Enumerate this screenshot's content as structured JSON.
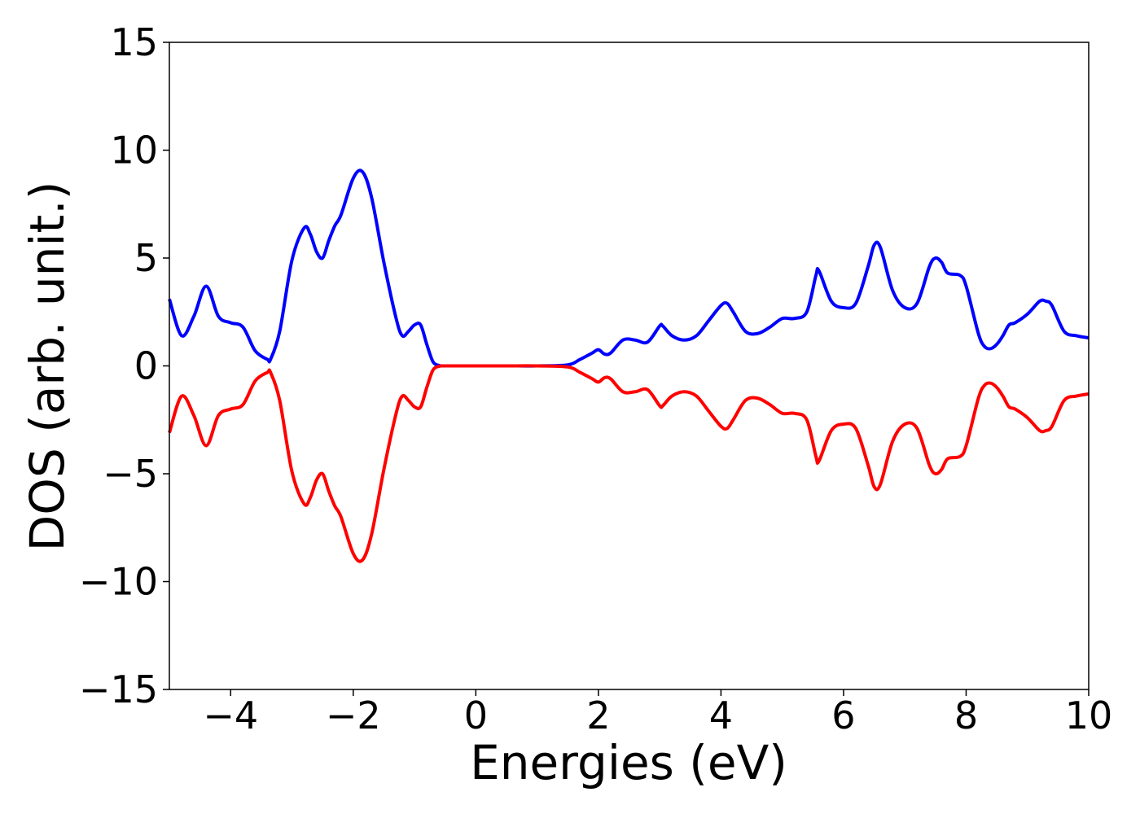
{
  "chart_data": {
    "type": "line",
    "title": "",
    "xlabel": "Energies (eV)",
    "ylabel": "DOS (arb. unit.)",
    "xlim": [
      -5,
      10
    ],
    "ylim": [
      -15,
      15
    ],
    "grid": false,
    "legend": "none",
    "x_ticks": [
      -4,
      -2,
      0,
      2,
      4,
      6,
      8,
      10
    ],
    "x_tick_labels": [
      "−4",
      "−2",
      "0",
      "2",
      "4",
      "6",
      "8",
      "10"
    ],
    "y_ticks": [
      -15,
      -10,
      -5,
      0,
      5,
      10,
      15
    ],
    "y_tick_labels": [
      "−15",
      "−10",
      "−5",
      "0",
      "5",
      "10",
      "15"
    ],
    "series": [
      {
        "color": "#0000ff",
        "x": [
          -5.0,
          -4.8,
          -4.6,
          -4.4,
          -4.2,
          -4.0,
          -3.8,
          -3.6,
          -3.4,
          -3.35,
          -3.2,
          -3.0,
          -2.8,
          -2.7,
          -2.6,
          -2.5,
          -2.4,
          -2.3,
          -2.2,
          -2.0,
          -1.85,
          -1.7,
          -1.5,
          -1.3,
          -1.2,
          -1.1,
          -1.0,
          -0.9,
          -0.8,
          -0.7,
          -0.6,
          -0.5,
          0.0,
          0.5,
          1.0,
          1.5,
          1.7,
          1.9,
          2.0,
          2.1,
          2.2,
          2.4,
          2.6,
          2.8,
          3.0,
          3.05,
          3.2,
          3.4,
          3.6,
          3.8,
          4.0,
          4.1,
          4.2,
          4.4,
          4.6,
          4.8,
          5.0,
          5.2,
          5.4,
          5.55,
          5.6,
          5.8,
          6.0,
          6.2,
          6.4,
          6.5,
          6.6,
          6.8,
          7.0,
          7.2,
          7.4,
          7.5,
          7.6,
          7.7,
          7.9,
          8.0,
          8.2,
          8.3,
          8.4,
          8.5,
          8.6,
          8.7,
          8.8,
          9.0,
          9.2,
          9.3,
          9.4,
          9.6,
          9.8,
          10.0
        ],
        "values": [
          3.1,
          1.4,
          2.3,
          3.7,
          2.3,
          2.0,
          1.8,
          0.7,
          0.3,
          0.3,
          1.6,
          4.9,
          6.4,
          6.1,
          5.3,
          5.0,
          5.8,
          6.5,
          7.0,
          8.7,
          9.0,
          7.8,
          4.8,
          2.2,
          1.4,
          1.6,
          1.9,
          1.9,
          1.0,
          0.2,
          0.02,
          0.0,
          0.0,
          0.0,
          0.0,
          0.05,
          0.3,
          0.6,
          0.75,
          0.55,
          0.6,
          1.2,
          1.2,
          1.1,
          1.85,
          1.85,
          1.4,
          1.2,
          1.4,
          2.1,
          2.8,
          2.9,
          2.5,
          1.6,
          1.5,
          1.8,
          2.2,
          2.2,
          2.5,
          4.2,
          4.4,
          3.0,
          2.7,
          2.9,
          4.6,
          5.6,
          5.5,
          3.5,
          2.7,
          2.9,
          4.6,
          5.0,
          4.8,
          4.3,
          4.2,
          3.7,
          1.5,
          0.9,
          0.8,
          1.0,
          1.4,
          1.9,
          2.0,
          2.4,
          3.0,
          3.0,
          2.8,
          1.6,
          1.4,
          1.3
        ]
      },
      {
        "color": "#ff0000",
        "x": [
          -5.0,
          -4.8,
          -4.6,
          -4.4,
          -4.2,
          -4.0,
          -3.8,
          -3.6,
          -3.4,
          -3.35,
          -3.2,
          -3.0,
          -2.8,
          -2.7,
          -2.6,
          -2.5,
          -2.4,
          -2.3,
          -2.2,
          -2.0,
          -1.85,
          -1.7,
          -1.5,
          -1.3,
          -1.2,
          -1.1,
          -1.0,
          -0.9,
          -0.8,
          -0.7,
          -0.6,
          -0.5,
          0.0,
          0.5,
          1.0,
          1.5,
          1.7,
          1.9,
          2.0,
          2.1,
          2.2,
          2.4,
          2.6,
          2.8,
          3.0,
          3.05,
          3.2,
          3.4,
          3.6,
          3.8,
          4.0,
          4.1,
          4.2,
          4.4,
          4.6,
          4.8,
          5.0,
          5.2,
          5.4,
          5.55,
          5.6,
          5.8,
          6.0,
          6.2,
          6.4,
          6.5,
          6.6,
          6.8,
          7.0,
          7.2,
          7.4,
          7.5,
          7.6,
          7.7,
          7.9,
          8.0,
          8.2,
          8.3,
          8.4,
          8.5,
          8.6,
          8.7,
          8.8,
          9.0,
          9.2,
          9.3,
          9.4,
          9.6,
          9.8,
          10.0
        ],
        "values": [
          -3.1,
          -1.4,
          -2.3,
          -3.7,
          -2.3,
          -2.0,
          -1.8,
          -0.7,
          -0.3,
          -0.3,
          -1.6,
          -4.9,
          -6.4,
          -6.1,
          -5.3,
          -5.0,
          -5.8,
          -6.5,
          -7.0,
          -8.7,
          -9.0,
          -7.8,
          -4.8,
          -2.2,
          -1.4,
          -1.6,
          -1.9,
          -1.9,
          -1.0,
          -0.2,
          -0.02,
          0.0,
          0.0,
          0.0,
          0.0,
          -0.05,
          -0.3,
          -0.6,
          -0.75,
          -0.55,
          -0.6,
          -1.2,
          -1.2,
          -1.1,
          -1.85,
          -1.85,
          -1.4,
          -1.2,
          -1.4,
          -2.1,
          -2.8,
          -2.9,
          -2.5,
          -1.6,
          -1.5,
          -1.8,
          -2.2,
          -2.2,
          -2.5,
          -4.2,
          -4.4,
          -3.0,
          -2.7,
          -2.9,
          -4.6,
          -5.6,
          -5.5,
          -3.5,
          -2.7,
          -2.9,
          -4.6,
          -5.0,
          -4.8,
          -4.3,
          -4.2,
          -3.7,
          -1.5,
          -0.9,
          -0.8,
          -1.0,
          -1.4,
          -1.9,
          -2.0,
          -2.4,
          -3.0,
          -3.0,
          -2.8,
          -1.6,
          -1.4,
          -1.3
        ]
      }
    ]
  }
}
